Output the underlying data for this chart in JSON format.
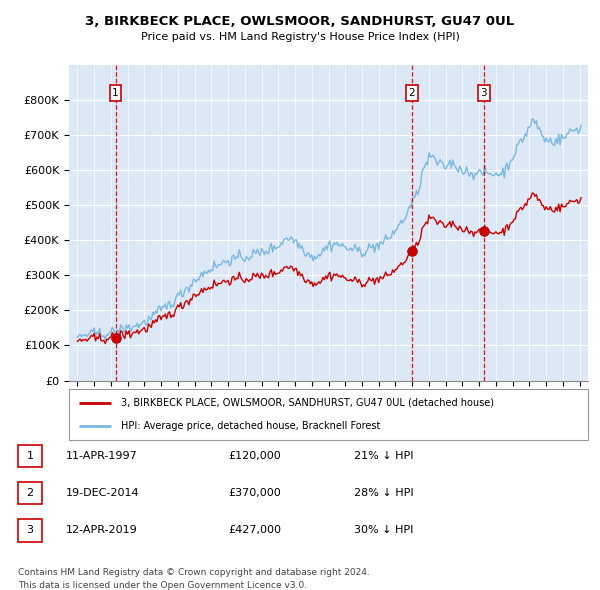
{
  "title": "3, BIRKBECK PLACE, OWLSMOOR, SANDHURST, GU47 0UL",
  "subtitle": "Price paid vs. HM Land Registry's House Price Index (HPI)",
  "xlim": [
    1994.5,
    2025.5
  ],
  "ylim": [
    0,
    900000
  ],
  "yticks": [
    0,
    100000,
    200000,
    300000,
    400000,
    500000,
    600000,
    700000,
    800000
  ],
  "ytick_labels": [
    "£0",
    "£100K",
    "£200K",
    "£300K",
    "£400K",
    "£500K",
    "£600K",
    "£700K",
    "£800K"
  ],
  "hpi_color": "#7ab8e0",
  "price_color": "#cc0000",
  "vline_color": "#dd0000",
  "sale_marker_color": "#cc0000",
  "plot_bg_color": "#dce8f5",
  "grid_color": "#c0d0e0",
  "transactions": [
    {
      "year": 1997.28,
      "price": 120000,
      "label": "1"
    },
    {
      "year": 2014.97,
      "price": 370000,
      "label": "2"
    },
    {
      "year": 2019.28,
      "price": 427000,
      "label": "3"
    }
  ],
  "legend_line1": "3, BIRKBECK PLACE, OWLSMOOR, SANDHURST, GU47 0UL (detached house)",
  "legend_line2": "HPI: Average price, detached house, Bracknell Forest",
  "table_rows": [
    {
      "num": "1",
      "date": "11-APR-1997",
      "price": "£120,000",
      "hpi": "21% ↓ HPI"
    },
    {
      "num": "2",
      "date": "19-DEC-2014",
      "price": "£370,000",
      "hpi": "28% ↓ HPI"
    },
    {
      "num": "3",
      "date": "12-APR-2019",
      "price": "£427,000",
      "hpi": "30% ↓ HPI"
    }
  ],
  "footnote1": "Contains HM Land Registry data © Crown copyright and database right 2024.",
  "footnote2": "This data is licensed under the Open Government Licence v3.0."
}
